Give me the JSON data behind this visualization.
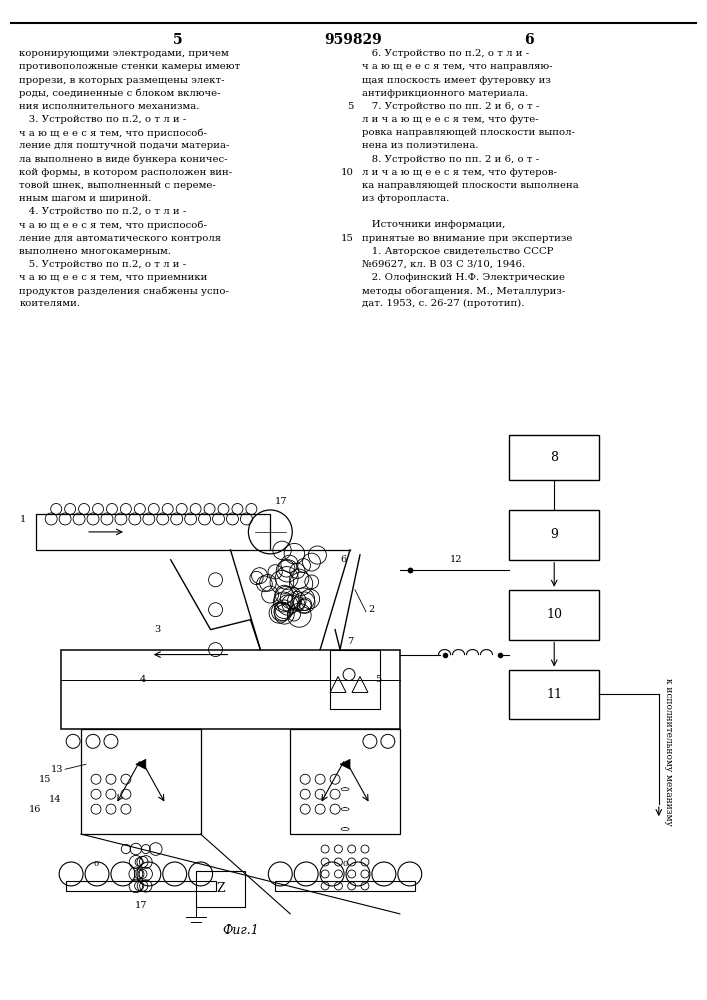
{
  "page_number_left": "5",
  "patent_number": "959829",
  "page_number_right": "6",
  "background_color": "#ffffff",
  "text_color": "#000000",
  "figsize": [
    7.07,
    10.0
  ],
  "dpi": 100,
  "left_column_text": [
    "коронирующими электродами, причем",
    "противоположные стенки камеры имеют",
    "прорези, в которых размещены элект-",
    "роды, соединенные с блоком включе-",
    "ния исполнительного механизма.",
    "   3. Устройство по п.2, о т л и -",
    "ч а ю щ е е с я тем, что приспособ-",
    "ление для поштучной подачи материа-",
    "ла выполнено в виде бункера коничес-",
    "кой формы, в котором расположен вин-",
    "товой шнек, выполненный с переме-",
    "нным шагом и шириной.",
    "   4. Устройство по п.2, о т л и -",
    "ч а ю щ е е с я тем, что приспособ-",
    "ление для автоматического контроля",
    "выполнено многокамерным.",
    "   5. Устройство по п.2, о т л и -",
    "ч а ю щ е е с я тем, что приемники",
    "продуктов разделения снабжены успо-",
    "коителями."
  ],
  "right_column_text": [
    "   6. Устройство по п.2, о т л и -",
    "ч а ю щ е е с я тем, что направляю-",
    "щая плоскость имеет футеровку из",
    "антифрикционного материала.",
    "   7. Устройство по пп. 2 и 6, о т -",
    "л и ч а ю щ е е с я тем, что футе-",
    "ровка направляющей плоскости выпол-",
    "нена из полиэтилена.",
    "   8. Устройство по пп. 2 и 6, о т -",
    "л и ч а ю щ е е с я тем, что футеров-",
    "ка направляющей плоскости выполнена",
    "из фторопласта.",
    "",
    "   Источники информации,",
    "принятые во внимание при экспертизе",
    "   1. Авторское свидетельство СССР",
    "№69627, кл. В 03 С 3/10, 1946.",
    "   2. Олофинский Н.Ф. Электрические",
    "методы обогащения. М., Металлуриз-",
    "дат. 1953, с. 26-27 (прототип)."
  ],
  "line_numbers_right": [
    "",
    "",
    "",
    "",
    "5",
    "",
    "",
    "",
    "",
    "10",
    "",
    "",
    "",
    "",
    "15",
    "",
    "",
    "",
    "",
    ""
  ],
  "figure_caption": "Фиг.1",
  "vertical_text_right": "к исполнительному механизму"
}
